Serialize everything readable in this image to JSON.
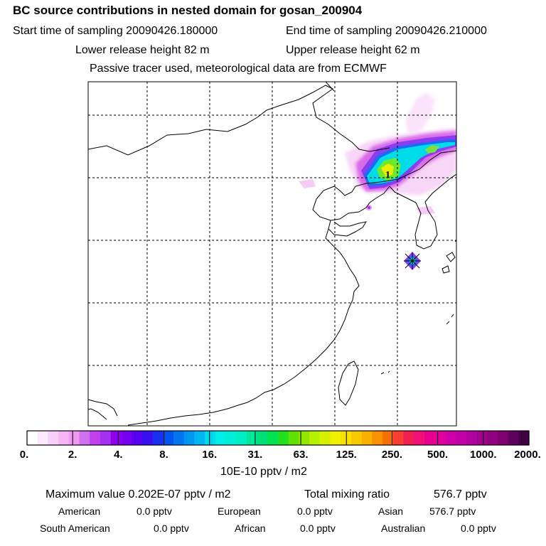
{
  "header": {
    "title": "BC  source contributions in nested domain for gosan_200904",
    "start_label": "Start time of sampling 20090426.180000",
    "end_label": "End time of sampling 20090426.210000",
    "lower_label": "Lower release height   82 m",
    "upper_label": "Upper release height   62 m",
    "tracer_note": "Passive tracer used, meteorological data are from ECMWF"
  },
  "map": {
    "marker_label": "1"
  },
  "colorbar": {
    "tick_labels": [
      "0.",
      "2.",
      "4.",
      "8.",
      "16.",
      "31.",
      "63.",
      "125.",
      "250.",
      "500.",
      "1000.",
      "2000."
    ],
    "colors": [
      "#ffffff",
      "#fde8fd",
      "#f9d0f9",
      "#f4b6f4",
      "#ee99f2",
      "#d070ee",
      "#c040f0",
      "#a830f0",
      "#9000f0",
      "#7800f0",
      "#5a00f0",
      "#3a10f0",
      "#1a30f0",
      "#0055ee",
      "#0075ee",
      "#0095ee",
      "#00b5f0",
      "#00d8f0",
      "#00eee8",
      "#00eed8",
      "#00eec8",
      "#00e89a",
      "#00e078",
      "#00e050",
      "#22e020",
      "#60e000",
      "#90e800",
      "#b8f000",
      "#d8f000",
      "#f0f000",
      "#f8e000",
      "#f8c800",
      "#f8b000",
      "#f89000",
      "#f87000",
      "#f84030",
      "#f02050",
      "#f01078",
      "#e80090",
      "#e000a0",
      "#d000a8",
      "#c000a8",
      "#b000a0",
      "#a00090",
      "#900080",
      "#800070",
      "#600060",
      "#400040"
    ],
    "unit_label": "10E-10 pptv / m2"
  },
  "stats": {
    "max_label": "Maximum value  0.202E-07 pptv / m2",
    "total_label": "Total mixing ratio",
    "total_value": "576.7 pptv",
    "american_label": "American",
    "american_value": "0.0 pptv",
    "european_label": "European",
    "european_value": "0.0 pptv",
    "asian_label": "Asian",
    "asian_value": "576.7 pptv",
    "south_american_label": "South American",
    "south_american_value": "0.0 pptv",
    "african_label": "African",
    "african_value": "0.0 pptv",
    "australian_label": "Australian",
    "australian_value": "0.0 pptv"
  }
}
